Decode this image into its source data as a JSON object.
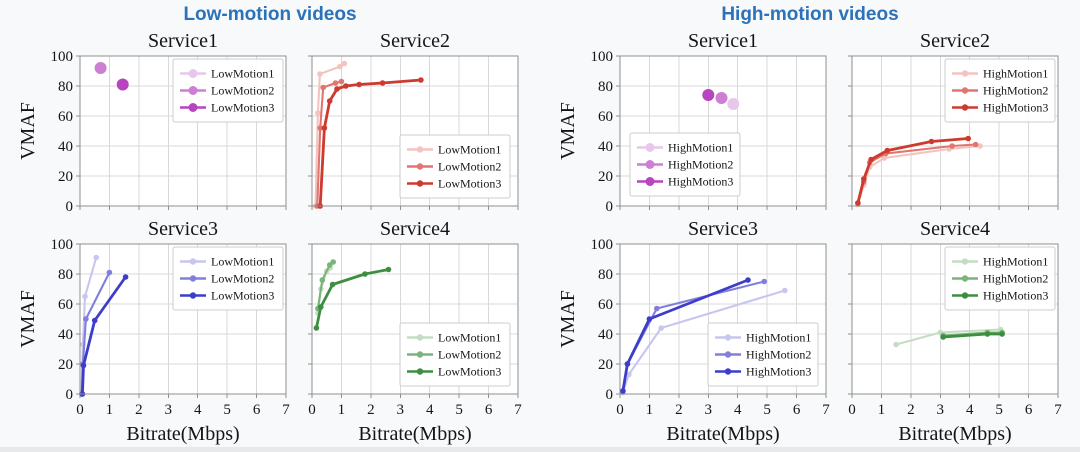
{
  "panels": [
    {
      "title": "Low-motion videos"
    },
    {
      "title": "High-motion videos"
    }
  ],
  "style": {
    "panel_title_color": "#2b72b8",
    "page_bg": "#f7f9fa",
    "plot_bg": "#ffffff",
    "grid_color": "#d9d9d9",
    "spine_color": "#8f8f8f",
    "text_color": "#151515",
    "legend_border": "#cccccc"
  },
  "axis": {
    "xlabel": "Bitrate(Mbps)",
    "ylabel": "VMAF",
    "xlim": [
      0,
      7
    ],
    "ylim": [
      0,
      100
    ],
    "xticks": [
      0,
      1,
      2,
      3,
      4,
      5,
      6,
      7
    ],
    "yticks": [
      0,
      20,
      40,
      60,
      80,
      100
    ],
    "grid": true
  },
  "chart_data": [
    {
      "group": "Low-motion videos",
      "title": "Service1",
      "type": "scatter",
      "legend_pos": "upper-right",
      "series": [
        {
          "name": "LowMotion1",
          "color": "#e8c8ea",
          "points": []
        },
        {
          "name": "LowMotion2",
          "color": "#cd7fd3",
          "points": [
            [
              0.7,
              92
            ]
          ]
        },
        {
          "name": "LowMotion3",
          "color": "#b844bf",
          "points": [
            [
              1.45,
              81
            ]
          ]
        }
      ]
    },
    {
      "group": "Low-motion videos",
      "title": "Service2",
      "type": "line",
      "legend_pos": "lower-right",
      "series": [
        {
          "name": "LowMotion1",
          "color": "#f2c3bf",
          "points": [
            [
              0.12,
              0
            ],
            [
              0.2,
              62
            ],
            [
              0.27,
              88
            ],
            [
              0.95,
              93
            ],
            [
              1.1,
              95
            ]
          ]
        },
        {
          "name": "LowMotion2",
          "color": "#e2756d",
          "points": [
            [
              0.18,
              0
            ],
            [
              0.28,
              52
            ],
            [
              0.38,
              79
            ],
            [
              0.8,
              82
            ],
            [
              1.0,
              83
            ]
          ]
        },
        {
          "name": "LowMotion3",
          "color": "#cd3a2e",
          "points": [
            [
              0.28,
              0
            ],
            [
              0.42,
              52
            ],
            [
              0.6,
              70
            ],
            [
              0.85,
              78
            ],
            [
              1.15,
              80
            ],
            [
              1.6,
              81
            ],
            [
              2.4,
              82
            ],
            [
              3.7,
              84
            ]
          ]
        }
      ]
    },
    {
      "group": "Low-motion videos",
      "title": "Service3",
      "type": "line",
      "legend_pos": "upper-right",
      "series": [
        {
          "name": "LowMotion1",
          "color": "#c6c6ee",
          "points": [
            [
              0.05,
              0
            ],
            [
              0.1,
              33
            ],
            [
              0.17,
              65
            ],
            [
              0.55,
              91
            ]
          ]
        },
        {
          "name": "LowMotion2",
          "color": "#8080dc",
          "points": [
            [
              0.06,
              0
            ],
            [
              0.1,
              20
            ],
            [
              0.2,
              50
            ],
            [
              1.0,
              81
            ]
          ]
        },
        {
          "name": "LowMotion3",
          "color": "#3d3dcc",
          "points": [
            [
              0.08,
              0
            ],
            [
              0.12,
              19
            ],
            [
              0.5,
              49
            ],
            [
              1.55,
              78
            ]
          ]
        }
      ]
    },
    {
      "group": "Low-motion videos",
      "title": "Service4",
      "type": "line",
      "legend_pos": "lower-right",
      "series": [
        {
          "name": "LowMotion1",
          "color": "#c4ddc2",
          "points": [
            [
              0.2,
              54
            ],
            [
              0.3,
              70
            ],
            [
              0.5,
              82
            ],
            [
              0.62,
              84
            ]
          ]
        },
        {
          "name": "LowMotion2",
          "color": "#79b478",
          "points": [
            [
              0.2,
              57
            ],
            [
              0.35,
              76
            ],
            [
              0.6,
              86
            ],
            [
              0.72,
              88
            ]
          ]
        },
        {
          "name": "LowMotion3",
          "color": "#3e8e41",
          "points": [
            [
              0.15,
              44
            ],
            [
              0.3,
              58
            ],
            [
              0.7,
              73
            ],
            [
              1.8,
              80
            ],
            [
              2.6,
              83
            ]
          ]
        }
      ]
    },
    {
      "group": "High-motion videos",
      "title": "Service1",
      "type": "scatter",
      "legend_pos": "lower-left",
      "series": [
        {
          "name": "HighMotion1",
          "color": "#e8c8ea",
          "points": [
            [
              3.85,
              68
            ]
          ]
        },
        {
          "name": "HighMotion2",
          "color": "#cd7fd3",
          "points": [
            [
              3.45,
              72
            ]
          ]
        },
        {
          "name": "HighMotion3",
          "color": "#b844bf",
          "points": [
            [
              3.0,
              74
            ]
          ]
        }
      ]
    },
    {
      "group": "High-motion videos",
      "title": "Service2",
      "type": "line",
      "legend_pos": "upper-right",
      "series": [
        {
          "name": "HighMotion1",
          "color": "#f2c3bf",
          "points": [
            [
              0.2,
              1
            ],
            [
              0.4,
              14
            ],
            [
              0.6,
              26
            ],
            [
              1.1,
              32
            ],
            [
              3.3,
              38
            ],
            [
              4.35,
              40
            ]
          ]
        },
        {
          "name": "HighMotion2",
          "color": "#e2756d",
          "points": [
            [
              0.2,
              2
            ],
            [
              0.4,
              16
            ],
            [
              0.6,
              29
            ],
            [
              1.15,
              35
            ],
            [
              3.4,
              40
            ],
            [
              4.2,
              41
            ]
          ]
        },
        {
          "name": "HighMotion3",
          "color": "#cd3a2e",
          "points": [
            [
              0.2,
              2
            ],
            [
              0.4,
              18
            ],
            [
              0.65,
              31
            ],
            [
              1.2,
              37
            ],
            [
              2.7,
              43
            ],
            [
              3.95,
              45
            ]
          ]
        }
      ]
    },
    {
      "group": "High-motion videos",
      "title": "Service3",
      "type": "line",
      "legend_pos": "lower-right",
      "series": [
        {
          "name": "HighMotion1",
          "color": "#c6c6ee",
          "points": [
            [
              0.1,
              1
            ],
            [
              0.3,
              13
            ],
            [
              1.4,
              44
            ],
            [
              5.6,
              69
            ]
          ]
        },
        {
          "name": "HighMotion2",
          "color": "#8080dc",
          "points": [
            [
              0.1,
              2
            ],
            [
              0.25,
              20
            ],
            [
              1.25,
              57
            ],
            [
              4.9,
              75
            ]
          ]
        },
        {
          "name": "HighMotion3",
          "color": "#3d3dcc",
          "points": [
            [
              0.1,
              2
            ],
            [
              0.25,
              20
            ],
            [
              1.0,
              50
            ],
            [
              4.35,
              76
            ]
          ]
        }
      ]
    },
    {
      "group": "High-motion videos",
      "title": "Service4",
      "type": "line",
      "legend_pos": "upper-right",
      "series": [
        {
          "name": "HighMotion1",
          "color": "#c4ddc2",
          "points": [
            [
              1.5,
              33
            ],
            [
              3.0,
              41
            ],
            [
              5.05,
              43
            ]
          ]
        },
        {
          "name": "HighMotion2",
          "color": "#79b478",
          "points": [
            [
              3.1,
              39
            ],
            [
              4.6,
              41
            ],
            [
              5.1,
              41
            ]
          ]
        },
        {
          "name": "HighMotion3",
          "color": "#3e8e41",
          "points": [
            [
              3.1,
              38
            ],
            [
              4.6,
              40
            ],
            [
              5.1,
              40
            ]
          ]
        }
      ]
    }
  ]
}
